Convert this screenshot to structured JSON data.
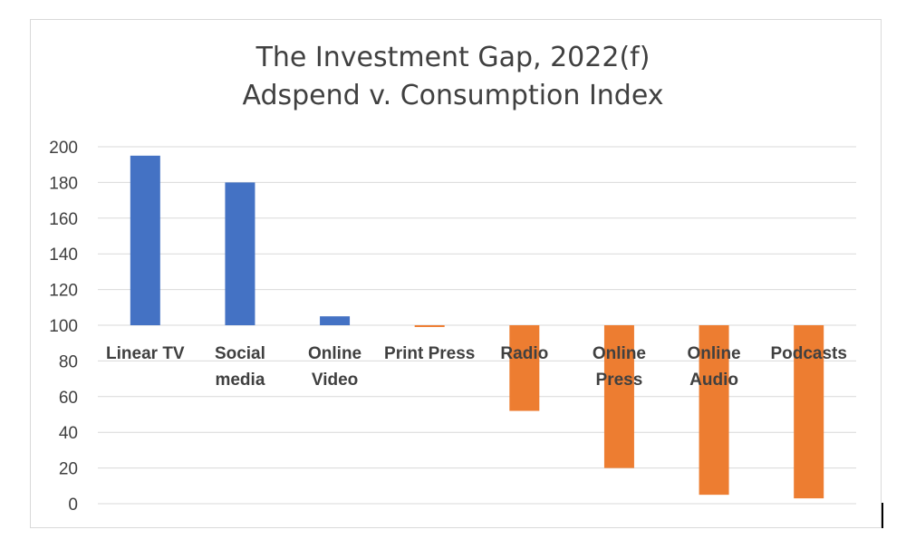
{
  "chart_data": {
    "type": "bar",
    "title": "The Investment Gap, 2022(f)",
    "subtitle": "Adspend v. Consumption Index",
    "categories": [
      "Linear TV",
      "Social media",
      "Online Video",
      "Print Press",
      "Radio",
      "Online Press",
      "Online Audio",
      "Podcasts"
    ],
    "category_label_lines": [
      [
        "Linear TV"
      ],
      [
        "Social",
        "media"
      ],
      [
        "Online",
        "Video"
      ],
      [
        "Print Press"
      ],
      [
        "Radio"
      ],
      [
        "Online",
        "Press"
      ],
      [
        "Online",
        "Audio"
      ],
      [
        "Podcasts"
      ]
    ],
    "values": [
      195,
      180,
      105,
      99,
      52,
      20,
      5,
      3
    ],
    "baseline": 100,
    "ylim": [
      0,
      200
    ],
    "yticks": [
      0,
      20,
      40,
      60,
      80,
      100,
      120,
      140,
      160,
      180,
      200
    ],
    "colors": {
      "above": "#4472c4",
      "below": "#ed7d31",
      "grid": "#d9d9d9",
      "text": "#404040"
    },
    "grid": true,
    "legend": "none"
  }
}
